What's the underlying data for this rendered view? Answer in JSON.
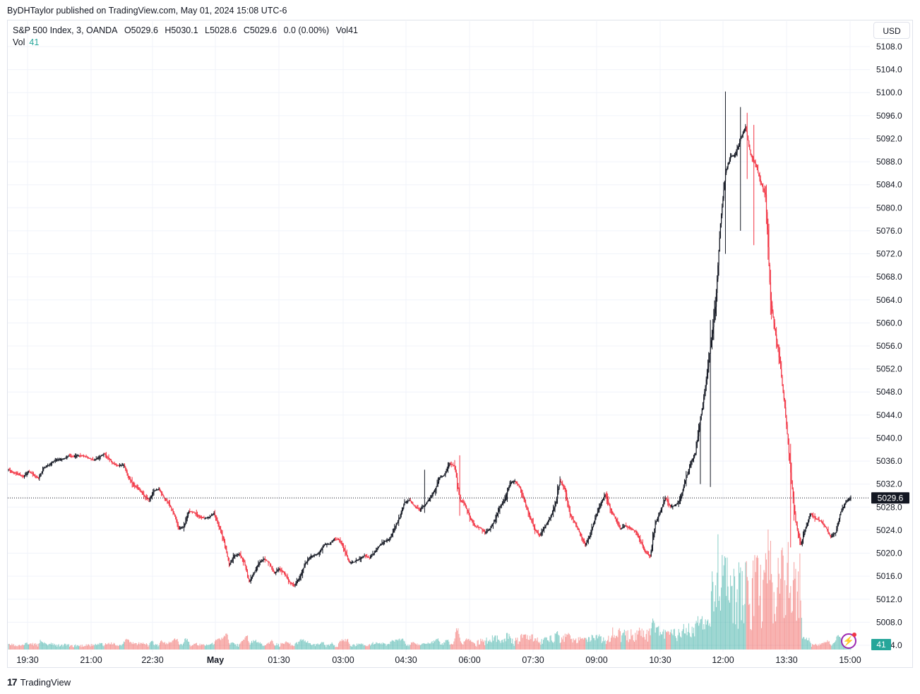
{
  "publisher_line": "ByDHTaylor published on TradingView.com, May 01, 2024 15:08 UTC-6",
  "legend": {
    "symbol": "S&P 500 Index, 3, OANDA",
    "open": "O5029.6",
    "high": "H5030.1",
    "low": "L5028.6",
    "close": "C5029.6",
    "change": "0.0 (0.00%)",
    "vol": "Vol41",
    "vol_label": "Vol",
    "vol_value": "41"
  },
  "currency_button": "USD",
  "footer_brand": "TradingView",
  "colors": {
    "up": "#131722",
    "down": "#f23645",
    "vol_up": "#26a69a",
    "vol_down": "#ef5350",
    "grid": "#f0f3fa"
  },
  "chart_data": {
    "type": "candlestick",
    "y_ticks": [
      "5108.0",
      "5104.0",
      "5100.0",
      "5096.0",
      "5092.0",
      "5088.0",
      "5084.0",
      "5080.0",
      "5076.0",
      "5072.0",
      "5068.0",
      "5064.0",
      "5060.0",
      "5056.0",
      "5052.0",
      "5048.0",
      "5044.0",
      "5040.0",
      "5036.0",
      "5032.0",
      "5028.0",
      "5024.0",
      "5020.0",
      "5016.0",
      "5012.0",
      "5008.0",
      "5004.0"
    ],
    "ylim": [
      5004,
      5108
    ],
    "x_ticks": [
      "19:30",
      "21:00",
      "22:30",
      "May",
      "01:30",
      "03:00",
      "04:30",
      "06:00",
      "07:30",
      "09:00",
      "10:30",
      "12:00",
      "13:30",
      "15:00"
    ],
    "last_price_label": "5029.6",
    "last_volume_label": "41",
    "close_path": [
      [
        0,
        5034.5
      ],
      [
        6,
        5034.0
      ],
      [
        12,
        5033.8
      ],
      [
        18,
        5033.2
      ],
      [
        24,
        5034.2
      ],
      [
        30,
        5033.6
      ],
      [
        36,
        5033.0
      ],
      [
        42,
        5034.8
      ],
      [
        48,
        5035.3
      ],
      [
        54,
        5036.0
      ],
      [
        60,
        5036.2
      ],
      [
        66,
        5036.4
      ],
      [
        72,
        5036.9
      ],
      [
        78,
        5036.8
      ],
      [
        84,
        5037.0
      ],
      [
        90,
        5036.9
      ],
      [
        96,
        5036.5
      ],
      [
        102,
        5036.2
      ],
      [
        108,
        5036.6
      ],
      [
        114,
        5037.3
      ],
      [
        120,
        5036.5
      ],
      [
        126,
        5035.5
      ],
      [
        132,
        5035.2
      ],
      [
        138,
        5035.4
      ],
      [
        144,
        5033.0
      ],
      [
        150,
        5031.8
      ],
      [
        156,
        5031.2
      ],
      [
        162,
        5030.0
      ],
      [
        168,
        5029.3
      ],
      [
        174,
        5030.8
      ],
      [
        180,
        5031.2
      ],
      [
        186,
        5029.6
      ],
      [
        192,
        5028.6
      ],
      [
        198,
        5026.8
      ],
      [
        204,
        5024.2
      ],
      [
        210,
        5024.7
      ],
      [
        216,
        5027.3
      ],
      [
        222,
        5027.1
      ],
      [
        228,
        5026.4
      ],
      [
        234,
        5026.1
      ],
      [
        240,
        5026.2
      ],
      [
        246,
        5027.0
      ],
      [
        252,
        5024.6
      ],
      [
        258,
        5022.0
      ],
      [
        264,
        5018.0
      ],
      [
        270,
        5019.5
      ],
      [
        276,
        5019.9
      ],
      [
        282,
        5018.5
      ],
      [
        288,
        5015.0
      ],
      [
        294,
        5016.6
      ],
      [
        300,
        5018.4
      ],
      [
        306,
        5019.0
      ],
      [
        312,
        5018.3
      ],
      [
        318,
        5016.5
      ],
      [
        324,
        5017.2
      ],
      [
        330,
        5016.6
      ],
      [
        336,
        5015.0
      ],
      [
        342,
        5014.5
      ],
      [
        348,
        5015.6
      ],
      [
        354,
        5017.8
      ],
      [
        360,
        5019.3
      ],
      [
        366,
        5019.6
      ],
      [
        372,
        5020.1
      ],
      [
        378,
        5021.5
      ],
      [
        384,
        5021.6
      ],
      [
        390,
        5022.5
      ],
      [
        396,
        5022.4
      ],
      [
        402,
        5020.5
      ],
      [
        408,
        5018.4
      ],
      [
        414,
        5018.5
      ],
      [
        420,
        5019.0
      ],
      [
        426,
        5019.6
      ],
      [
        432,
        5019.2
      ],
      [
        438,
        5020.1
      ],
      [
        444,
        5021.3
      ],
      [
        450,
        5022.1
      ],
      [
        456,
        5022.4
      ],
      [
        462,
        5024.3
      ],
      [
        468,
        5026.2
      ],
      [
        474,
        5028.8
      ],
      [
        480,
        5029.2
      ],
      [
        486,
        5028.1
      ],
      [
        492,
        5027.5
      ],
      [
        498,
        5028.3
      ],
      [
        504,
        5029.5
      ],
      [
        510,
        5030.9
      ],
      [
        516,
        5033.1
      ],
      [
        522,
        5033.6
      ],
      [
        528,
        5035.6
      ],
      [
        534,
        5035.1
      ],
      [
        540,
        5029.3
      ],
      [
        546,
        5028.5
      ],
      [
        552,
        5026.2
      ],
      [
        558,
        5024.7
      ],
      [
        564,
        5024.5
      ],
      [
        570,
        5023.6
      ],
      [
        576,
        5024.1
      ],
      [
        582,
        5025.8
      ],
      [
        588,
        5028.0
      ],
      [
        594,
        5029.2
      ],
      [
        600,
        5032.2
      ],
      [
        606,
        5032.5
      ],
      [
        612,
        5031.5
      ],
      [
        618,
        5028.8
      ],
      [
        624,
        5026.3
      ],
      [
        630,
        5024.0
      ],
      [
        636,
        5023.1
      ],
      [
        642,
        5024.6
      ],
      [
        648,
        5026.2
      ],
      [
        654,
        5028.2
      ],
      [
        660,
        5032.6
      ],
      [
        666,
        5031.1
      ],
      [
        672,
        5026.7
      ],
      [
        678,
        5025.2
      ],
      [
        684,
        5023.4
      ],
      [
        690,
        5021.4
      ],
      [
        696,
        5023.1
      ],
      [
        702,
        5026.1
      ],
      [
        708,
        5028.3
      ],
      [
        714,
        5030.2
      ],
      [
        720,
        5027.8
      ],
      [
        726,
        5026.1
      ],
      [
        732,
        5024.2
      ],
      [
        738,
        5024.8
      ],
      [
        744,
        5024.4
      ],
      [
        750,
        5023.8
      ],
      [
        756,
        5022.2
      ],
      [
        762,
        5020.2
      ],
      [
        768,
        5019.4
      ],
      [
        774,
        5025.2
      ],
      [
        780,
        5027.2
      ],
      [
        786,
        5029.6
      ],
      [
        792,
        5028.1
      ],
      [
        798,
        5028.3
      ],
      [
        804,
        5029.4
      ],
      [
        810,
        5032.6
      ],
      [
        816,
        5035.5
      ],
      [
        822,
        5037.4
      ],
      [
        828,
        5043.2
      ],
      [
        834,
        5049.0
      ],
      [
        840,
        5055.8
      ],
      [
        846,
        5062.8
      ],
      [
        852,
        5077.2
      ],
      [
        858,
        5086.1
      ],
      [
        864,
        5088.9
      ],
      [
        870,
        5089.2
      ],
      [
        876,
        5092.0
      ],
      [
        882,
        5094.1
      ],
      [
        888,
        5089.3
      ],
      [
        894,
        5087.6
      ],
      [
        900,
        5084.4
      ],
      [
        906,
        5082.3
      ],
      [
        912,
        5064.0
      ],
      [
        918,
        5058.0
      ],
      [
        924,
        5052.0
      ],
      [
        930,
        5044.0
      ],
      [
        936,
        5034.0
      ],
      [
        942,
        5025.5
      ],
      [
        948,
        5021.5
      ],
      [
        954,
        5024.3
      ],
      [
        960,
        5026.8
      ],
      [
        966,
        5026.0
      ],
      [
        972,
        5025.6
      ],
      [
        978,
        5024.5
      ],
      [
        984,
        5022.8
      ],
      [
        990,
        5023.6
      ],
      [
        996,
        5027.2
      ],
      [
        1002,
        5028.9
      ],
      [
        1008,
        5029.6
      ]
    ],
    "spikes": [
      [
        858,
        5072.0,
        5100.2
      ],
      [
        876,
        5076.0,
        5097.5
      ],
      [
        884,
        5085.0,
        5096.5
      ],
      [
        892,
        5073.5,
        5094.4
      ],
      [
        840,
        5031.5,
        5060.5
      ],
      [
        828,
        5032.0,
        5040.4
      ],
      [
        936,
        5021.0,
        5039.0
      ],
      [
        540,
        5026.5,
        5037.0
      ],
      [
        498,
        5027.0,
        5034.5
      ]
    ]
  }
}
